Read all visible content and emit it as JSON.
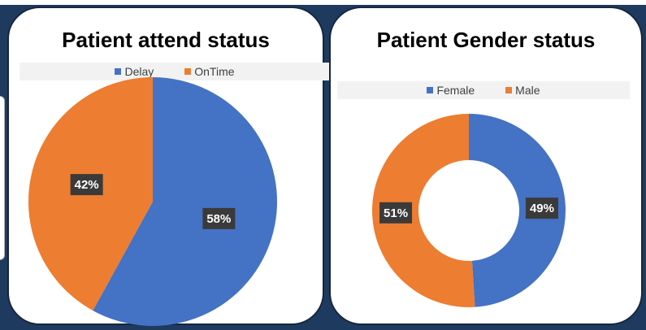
{
  "chart_data": [
    {
      "type": "pie",
      "title": "Patient attend status",
      "categories": [
        "Delay",
        "OnTime"
      ],
      "values": [
        58,
        42
      ],
      "labels": [
        "58%",
        "42%"
      ],
      "colors": [
        "#4472c4",
        "#ed7d31"
      ],
      "legend_position": "top"
    },
    {
      "type": "pie",
      "title": "Patient Gender status",
      "categories": [
        "Female",
        "Male"
      ],
      "values": [
        49,
        51
      ],
      "labels": [
        "49%",
        "51%"
      ],
      "colors": [
        "#4472c4",
        "#ed7d31"
      ],
      "legend_position": "top",
      "donut": true
    }
  ]
}
